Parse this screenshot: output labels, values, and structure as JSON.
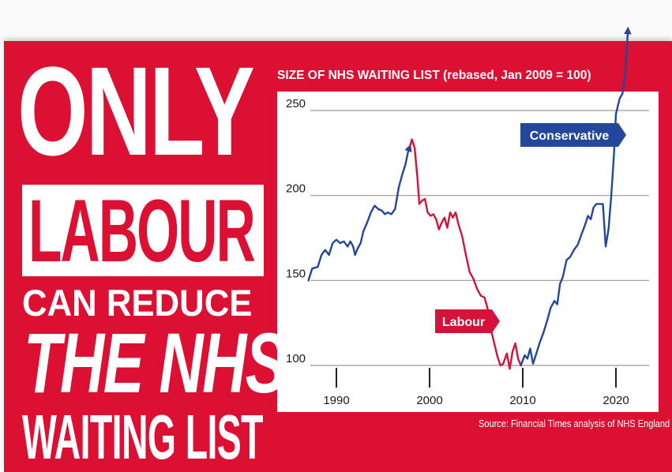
{
  "headline": {
    "line1": "ONLY",
    "line2": "LABOUR",
    "line3": "CAN REDUCE",
    "line4": "THE NHS",
    "line5": "WAITING LIST"
  },
  "source_text": "Source: Financial Times analysis of NHS England",
  "colors": {
    "background_red": "#dc1033",
    "labour_red": "#d5123a",
    "conservative_blue": "#23479a",
    "plot_background": "#ffffff",
    "grid": "#999999"
  },
  "chart_data": {
    "type": "line",
    "title": "SIZE OF NHS WAITING LIST (rebased, Jan 2009 = 100)",
    "xlabel": "",
    "ylabel": "",
    "xlim": [
      1987,
      2022.5
    ],
    "ylim": [
      97,
      262
    ],
    "x_ticks": [
      1990,
      2000,
      2010,
      2020
    ],
    "y_ticks": [
      100,
      150,
      200,
      250
    ],
    "grid": "horizontal",
    "annotations": [
      {
        "label": "Conservative",
        "series": "Conservative"
      },
      {
        "label": "Labour",
        "series": "Labour"
      }
    ],
    "series": [
      {
        "name": "Conservative",
        "arrow_end": true,
        "points": [
          [
            1987.0,
            150
          ],
          [
            1987.4,
            157
          ],
          [
            1988.0,
            158
          ],
          [
            1988.4,
            165
          ],
          [
            1988.8,
            168
          ],
          [
            1989.2,
            165
          ],
          [
            1989.6,
            172
          ],
          [
            1990.0,
            174
          ],
          [
            1990.4,
            172
          ],
          [
            1990.8,
            173
          ],
          [
            1991.2,
            170
          ],
          [
            1991.5,
            173
          ],
          [
            1991.8,
            170
          ],
          [
            1992.0,
            165
          ],
          [
            1992.3,
            169
          ],
          [
            1992.6,
            172
          ],
          [
            1992.9,
            179
          ],
          [
            1993.3,
            184
          ],
          [
            1993.7,
            190
          ],
          [
            1994.1,
            194
          ],
          [
            1994.5,
            192
          ],
          [
            1994.9,
            191
          ],
          [
            1995.2,
            189
          ],
          [
            1995.5,
            190
          ],
          [
            1995.9,
            189
          ],
          [
            1996.3,
            192
          ],
          [
            1996.7,
            205
          ],
          [
            1997.1,
            213
          ],
          [
            1997.4,
            218
          ],
          [
            1997.7,
            226
          ],
          [
            1997.9,
            229
          ]
        ]
      },
      {
        "name": "Labour",
        "arrow_end": true,
        "points": [
          [
            1997.9,
            229
          ],
          [
            1998.1,
            233
          ],
          [
            1998.4,
            228
          ],
          [
            1998.7,
            210
          ],
          [
            1998.9,
            195
          ],
          [
            1999.2,
            197
          ],
          [
            1999.5,
            198
          ],
          [
            1999.8,
            190
          ],
          [
            2000.1,
            188
          ],
          [
            2000.4,
            189
          ],
          [
            2000.7,
            186
          ],
          [
            2001.0,
            180
          ],
          [
            2001.3,
            184
          ],
          [
            2001.6,
            187
          ],
          [
            2001.9,
            181
          ],
          [
            2002.2,
            190
          ],
          [
            2002.5,
            187
          ],
          [
            2002.8,
            190
          ],
          [
            2003.1,
            183
          ],
          [
            2003.5,
            176
          ],
          [
            2003.9,
            165
          ],
          [
            2004.3,
            155
          ],
          [
            2004.7,
            151
          ],
          [
            2005.1,
            145
          ],
          [
            2005.5,
            141
          ],
          [
            2005.9,
            140
          ],
          [
            2006.3,
            132
          ],
          [
            2006.6,
            121
          ],
          [
            2006.9,
            114
          ],
          [
            2007.3,
            105
          ],
          [
            2007.6,
            100
          ],
          [
            2007.9,
            101
          ],
          [
            2008.3,
            107
          ],
          [
            2008.6,
            98
          ],
          [
            2008.9,
            108
          ],
          [
            2009.2,
            113
          ],
          [
            2009.5,
            104
          ],
          [
            2009.8,
            100
          ]
        ]
      },
      {
        "name": "Conservative",
        "arrow_end": true,
        "points": [
          [
            2009.8,
            100
          ],
          [
            2010.2,
            106
          ],
          [
            2010.5,
            104
          ],
          [
            2010.8,
            110
          ],
          [
            2011.1,
            101
          ],
          [
            2011.4,
            106
          ],
          [
            2011.8,
            113
          ],
          [
            2012.2,
            119
          ],
          [
            2012.6,
            126
          ],
          [
            2013.0,
            134
          ],
          [
            2013.4,
            138
          ],
          [
            2013.7,
            136
          ],
          [
            2014.0,
            148
          ],
          [
            2014.3,
            152
          ],
          [
            2014.7,
            162
          ],
          [
            2015.1,
            164
          ],
          [
            2015.5,
            168
          ],
          [
            2015.9,
            171
          ],
          [
            2016.3,
            177
          ],
          [
            2016.7,
            183
          ],
          [
            2017.0,
            188
          ],
          [
            2017.3,
            186
          ],
          [
            2017.6,
            193
          ],
          [
            2017.9,
            195
          ],
          [
            2018.3,
            195
          ],
          [
            2018.6,
            195
          ],
          [
            2018.9,
            170
          ],
          [
            2019.2,
            180
          ],
          [
            2019.5,
            200
          ],
          [
            2019.8,
            225
          ],
          [
            2020.0,
            248
          ],
          [
            2020.4,
            257
          ],
          [
            2020.7,
            260
          ],
          [
            2021.0,
            272
          ],
          [
            2021.3,
            298
          ]
        ]
      }
    ]
  }
}
